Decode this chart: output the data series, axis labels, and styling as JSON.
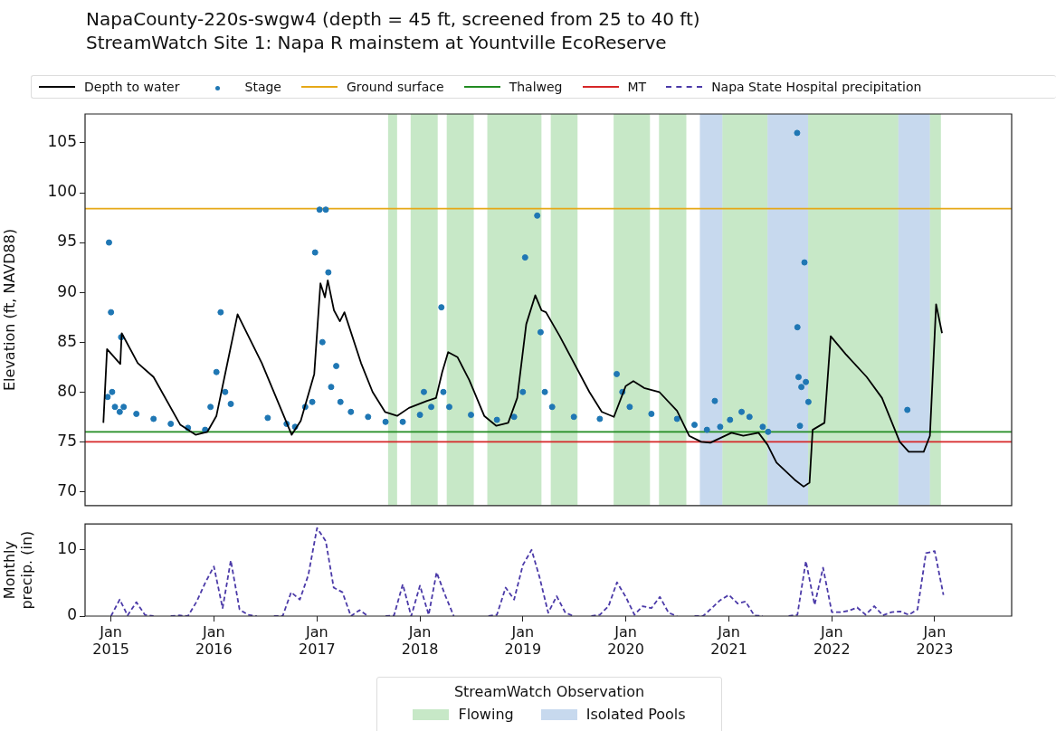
{
  "chart_data": [
    {
      "type": "line",
      "title": "NapaCounty-220s-swgw4 (depth = 45 ft, screened from 25 to 40 ft)",
      "subtitle": "StreamWatch Site 1: Napa R mainstem at Yountville EcoReserve",
      "ylabel": "Elevation (ft, NAVD88)",
      "legend": "top",
      "legend_title": "StreamWatch Observation",
      "grid": false,
      "tick_labels": "y",
      "xlim": [
        "2014-10",
        "2023-10"
      ],
      "ylim": [
        68.6,
        107.9
      ],
      "yticks": [
        70,
        75,
        80,
        85,
        90,
        95,
        100,
        105
      ],
      "bands": [
        {
          "axis": "x",
          "from": "2017-09-10",
          "to": "2017-10-12",
          "label": "Flowing",
          "color": "#8fd18f"
        },
        {
          "axis": "x",
          "from": "2017-11-29",
          "to": "2018-03-05",
          "color": "#8fd18f"
        },
        {
          "axis": "x",
          "from": "2018-04-06",
          "to": "2018-07-11",
          "color": "#8fd18f"
        },
        {
          "axis": "x",
          "from": "2018-08-28",
          "to": "2019-03-08",
          "color": "#8fd18f"
        },
        {
          "axis": "x",
          "from": "2019-04-10",
          "to": "2019-07-14",
          "color": "#8fd18f"
        },
        {
          "axis": "x",
          "from": "2019-11-19",
          "to": "2020-03-27",
          "color": "#8fd18f"
        },
        {
          "axis": "x",
          "from": "2020-04-28",
          "to": "2020-08-03",
          "color": "#8fd18f"
        },
        {
          "axis": "x",
          "from": "2020-09-20",
          "to": "2020-12-09",
          "label": "Isolated Pools",
          "color": "#8fb3dd"
        },
        {
          "axis": "x",
          "from": "2020-12-09",
          "to": "2021-05-18",
          "color": "#8fd18f"
        },
        {
          "axis": "x",
          "from": "2021-05-18",
          "to": "2021-10-09",
          "color": "#8fb3dd"
        },
        {
          "axis": "x",
          "from": "2021-10-09",
          "to": "2022-08-25",
          "color": "#8fd18f"
        },
        {
          "axis": "x",
          "from": "2022-08-25",
          "to": "2022-12-15",
          "color": "#8fb3dd"
        },
        {
          "axis": "x",
          "from": "2022-12-15",
          "to": "2023-01-23",
          "color": "#8fd18f"
        }
      ],
      "series": [
        {
          "name": "Depth to water",
          "color": "#000000",
          "marker": "none",
          "line_style": "solid",
          "x": [
            "2014-12-05",
            "2014-12-18",
            "2015-02-03",
            "2015-02-08",
            "2015-04-06",
            "2015-06-01",
            "2015-09-04",
            "2015-10-28",
            "2015-12-09",
            "2016-01-10",
            "2016-03-25",
            "2016-06-19",
            "2016-10-03",
            "2016-11-04",
            "2016-12-22",
            "2017-01-13",
            "2017-01-29",
            "2017-02-08",
            "2017-03-02",
            "2017-03-23",
            "2017-04-08",
            "2017-06-06",
            "2017-07-17",
            "2017-08-30",
            "2017-10-12",
            "2017-11-23",
            "2018-01-26",
            "2018-02-27",
            "2018-03-21",
            "2018-04-11",
            "2018-05-14",
            "2018-06-25",
            "2018-08-17",
            "2018-09-29",
            "2018-11-10",
            "2018-12-12",
            "2019-01-13",
            "2019-02-14",
            "2019-03-08",
            "2019-03-24",
            "2019-05-12",
            "2019-08-25",
            "2019-10-08",
            "2019-11-20",
            "2020-01-01",
            "2020-01-28",
            "2020-03-06",
            "2020-04-29",
            "2020-07-01",
            "2020-08-13",
            "2020-09-25",
            "2020-10-27",
            "2021-01-10",
            "2021-02-21",
            "2021-04-16",
            "2021-05-18",
            "2021-06-19",
            "2021-08-22",
            "2021-09-23",
            "2021-10-14",
            "2021-10-25",
            "2021-12-06",
            "2021-12-28",
            "2022-02-19",
            "2022-05-05",
            "2022-06-28",
            "2022-08-30",
            "2022-10-01",
            "2022-11-23",
            "2022-12-15",
            "2023-01-06",
            "2023-01-27"
          ],
          "values": [
            76.9,
            84.3,
            82.8,
            85.9,
            82.9,
            81.5,
            76.7,
            75.7,
            76.0,
            77.6,
            87.8,
            82.9,
            75.7,
            77.1,
            81.8,
            90.9,
            89.5,
            91.2,
            88.2,
            87.1,
            88.0,
            82.9,
            80.0,
            78.0,
            77.6,
            78.4,
            79.1,
            79.4,
            82.0,
            84.0,
            83.5,
            81.2,
            77.6,
            76.6,
            76.9,
            79.4,
            86.8,
            89.7,
            88.2,
            88.0,
            85.6,
            80.0,
            78.0,
            77.5,
            80.6,
            81.1,
            80.4,
            80.0,
            78.1,
            75.6,
            75.0,
            74.9,
            75.9,
            75.6,
            75.9,
            74.7,
            72.9,
            71.2,
            70.5,
            70.9,
            76.2,
            76.9,
            85.6,
            83.8,
            81.5,
            79.4,
            75.0,
            74.0,
            74.0,
            75.6,
            88.8,
            85.9
          ]
        },
        {
          "name": "Stage",
          "type": "scatter",
          "color": "#1f77b4",
          "marker": "circle",
          "x": [
            "2014-12-20",
            "2014-12-25",
            "2015-01-01",
            "2015-01-05",
            "2015-01-15",
            "2015-02-01",
            "2015-02-06",
            "2015-02-15",
            "2015-04-01",
            "2015-06-01",
            "2015-08-01",
            "2015-10-01",
            "2015-12-01",
            "2015-12-20",
            "2016-01-10",
            "2016-01-25",
            "2016-02-10",
            "2016-03-01",
            "2016-07-10",
            "2016-09-15",
            "2016-10-15",
            "2016-11-20",
            "2016-12-15",
            "2016-12-25",
            "2017-01-10",
            "2017-01-20",
            "2017-02-01",
            "2017-02-10",
            "2017-02-20",
            "2017-03-10",
            "2017-03-25",
            "2017-05-01",
            "2017-07-01",
            "2017-09-01",
            "2017-11-01",
            "2018-01-01",
            "2018-01-15",
            "2018-02-10",
            "2018-03-18",
            "2018-03-25",
            "2018-04-15",
            "2018-07-01",
            "2018-10-01",
            "2018-12-01",
            "2019-01-01",
            "2019-01-09",
            "2019-02-21",
            "2019-03-05",
            "2019-03-20",
            "2019-04-15",
            "2019-07-01",
            "2019-10-01",
            "2019-11-30",
            "2019-12-20",
            "2020-01-15",
            "2020-04-01",
            "2020-07-01",
            "2020-09-01",
            "2020-10-15",
            "2020-11-12",
            "2020-12-01",
            "2021-01-05",
            "2021-02-15",
            "2021-03-15",
            "2021-05-01",
            "2021-05-20",
            "2021-08-31",
            "2021-09-01",
            "2021-09-05",
            "2021-09-10",
            "2021-09-15",
            "2021-09-26",
            "2021-10-01",
            "2021-10-10",
            "2022-09-26"
          ],
          "values": [
            79.5,
            95.0,
            88.0,
            80.0,
            78.5,
            78.0,
            85.5,
            78.5,
            77.8,
            77.3,
            76.8,
            76.4,
            76.2,
            78.5,
            82.0,
            88.0,
            80.0,
            78.8,
            77.4,
            76.8,
            76.5,
            78.5,
            79.0,
            94.0,
            98.3,
            85.0,
            98.3,
            92.0,
            80.5,
            82.6,
            79.0,
            78.0,
            77.5,
            77.0,
            77.0,
            77.7,
            80.0,
            78.5,
            88.5,
            80.0,
            78.5,
            77.7,
            77.2,
            77.5,
            80.0,
            93.5,
            97.7,
            86.0,
            80.0,
            78.5,
            77.5,
            77.3,
            81.8,
            80.0,
            78.5,
            77.8,
            77.3,
            76.7,
            76.2,
            79.1,
            76.5,
            77.2,
            78.0,
            77.5,
            76.5,
            76.0,
            106.0,
            86.5,
            81.5,
            76.6,
            80.5,
            93.0,
            81.0,
            79.0,
            78.2
          ]
        },
        {
          "name": "Ground surface",
          "color": "#e6a817",
          "marker": "none",
          "line_style": "solid",
          "x": [
            "2014-10",
            "2023-10"
          ],
          "values": [
            98.4,
            98.4
          ]
        },
        {
          "name": "Thalweg",
          "color": "#228b22",
          "marker": "none",
          "line_style": "solid",
          "x": [
            "2014-10",
            "2023-10"
          ],
          "values": [
            76.0,
            76.0
          ]
        },
        {
          "name": "MT",
          "color": "#d62728",
          "marker": "none",
          "line_style": "solid",
          "x": [
            "2014-10",
            "2023-10"
          ],
          "values": [
            75.0,
            75.0
          ]
        }
      ]
    },
    {
      "type": "line",
      "ylabel": "Monthly precip. (in)",
      "grid": false,
      "xlim": [
        "2014-10",
        "2023-10"
      ],
      "xticks": [
        {
          "value": "2015-01",
          "label": "Jan 2015"
        },
        {
          "value": "2016-01",
          "label": "Jan 2016"
        },
        {
          "value": "2017-01",
          "label": "Jan 2017"
        },
        {
          "value": "2018-01",
          "label": "Jan 2018"
        },
        {
          "value": "2019-01",
          "label": "Jan 2019"
        },
        {
          "value": "2020-01",
          "label": "Jan 2020"
        },
        {
          "value": "2021-01",
          "label": "Jan 2021"
        },
        {
          "value": "2022-01",
          "label": "Jan 2022"
        },
        {
          "value": "2023-01",
          "label": "Jan 2023"
        }
      ],
      "ylim": [
        0,
        13.9
      ],
      "yticks": [
        0,
        10
      ],
      "series": [
        {
          "name": "Napa State Hospital precipitation",
          "color": "#4b3aa8",
          "marker": "none",
          "line_style": "dashed",
          "x": [
            "2015-01",
            "2015-02",
            "2015-03",
            "2015-04",
            "2015-05",
            "2015-06",
            "2015-07",
            "2015-08",
            "2015-09",
            "2015-10",
            "2015-11",
            "2015-12",
            "2016-01",
            "2016-02",
            "2016-03",
            "2016-04",
            "2016-05",
            "2016-06",
            "2016-07",
            "2016-08",
            "2016-09",
            "2016-10",
            "2016-11",
            "2016-12",
            "2017-01",
            "2017-02",
            "2017-03",
            "2017-04",
            "2017-05",
            "2017-06",
            "2017-07",
            "2017-08",
            "2017-09",
            "2017-10",
            "2017-11",
            "2017-12",
            "2018-01",
            "2018-02",
            "2018-03",
            "2018-04",
            "2018-05",
            "2018-06",
            "2018-07",
            "2018-08",
            "2018-09",
            "2018-10",
            "2018-11",
            "2018-12",
            "2019-01",
            "2019-02",
            "2019-03",
            "2019-04",
            "2019-05",
            "2019-06",
            "2019-07",
            "2019-08",
            "2019-09",
            "2019-10",
            "2019-11",
            "2019-12",
            "2020-01",
            "2020-02",
            "2020-03",
            "2020-04",
            "2020-05",
            "2020-06",
            "2020-07",
            "2020-08",
            "2020-09",
            "2020-10",
            "2020-11",
            "2020-12",
            "2021-01",
            "2021-02",
            "2021-03",
            "2021-04",
            "2021-05",
            "2021-06",
            "2021-07",
            "2021-08",
            "2021-09",
            "2021-10",
            "2021-11",
            "2021-12",
            "2022-01",
            "2022-02",
            "2022-03",
            "2022-04",
            "2022-05",
            "2022-06",
            "2022-07",
            "2022-08",
            "2022-09",
            "2022-10",
            "2022-11",
            "2022-12",
            "2023-01",
            "2023-02"
          ],
          "values": [
            0,
            2.5,
            0.1,
            2.1,
            0.2,
            0,
            null,
            0,
            0.1,
            0,
            2.2,
            5.0,
            7.5,
            1.2,
            8.4,
            1.0,
            0.2,
            0,
            null,
            0,
            0,
            3.6,
            2.5,
            6.2,
            13.3,
            11.3,
            4.3,
            3.6,
            0,
            0.9,
            0,
            null,
            0,
            0.1,
            4.8,
            0,
            4.6,
            0.2,
            6.6,
            3.1,
            0,
            null,
            null,
            null,
            0,
            0.2,
            4.3,
            2.5,
            7.7,
            10.0,
            5.9,
            0.5,
            3.0,
            0.5,
            0,
            null,
            0,
            0.2,
            1.5,
            5.1,
            2.9,
            0.2,
            1.5,
            1.2,
            2.9,
            0.5,
            0,
            null,
            0,
            0,
            1.2,
            2.4,
            3.2,
            1.9,
            2.2,
            0.1,
            0,
            null,
            null,
            0,
            0.2,
            8.3,
            1.7,
            7.3,
            0.6,
            0.6,
            0.8,
            1.3,
            0.2,
            1.5,
            0.1,
            0.6,
            0.7,
            0.2,
            1.0,
            9.5,
            9.8,
            3.2
          ]
        }
      ]
    }
  ]
}
